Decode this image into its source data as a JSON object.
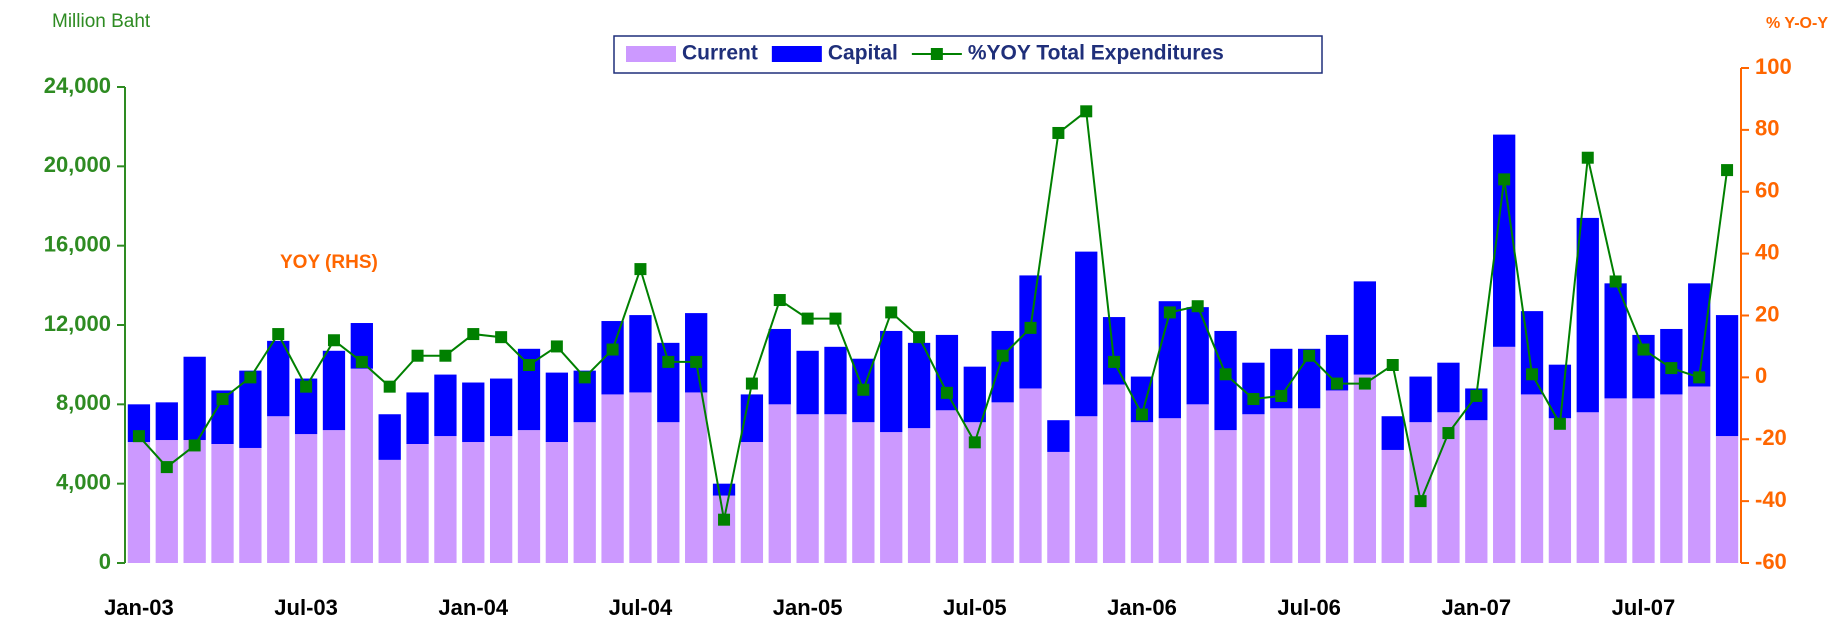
{
  "chart_data": {
    "type": "bar-line",
    "y_axis_label": "Million Baht",
    "y2_axis_label": "% Y-O-Y",
    "annotation": "YOY (RHS)",
    "categories": [
      "Jan-03",
      null,
      null,
      null,
      null,
      null,
      "Jul-03",
      null,
      null,
      null,
      null,
      null,
      "Jan-04",
      null,
      null,
      null,
      null,
      null,
      "Jul-04",
      null,
      null,
      null,
      null,
      null,
      "Jan-05",
      null,
      null,
      null,
      null,
      null,
      "Jul-05",
      null,
      null,
      null,
      null,
      null,
      "Jan-06",
      null,
      null,
      null,
      null,
      null,
      "Jul-06",
      null,
      null,
      null,
      null,
      null,
      "Jan-07",
      null,
      null,
      null,
      null,
      null,
      "Jul-07",
      null,
      null,
      null
    ],
    "series": [
      {
        "name": "Current",
        "color": "#cc99ff",
        "stack": true,
        "values": [
          6100,
          6200,
          6200,
          6000,
          5800,
          7400,
          6500,
          6700,
          9800,
          5200,
          6000,
          6400,
          6100,
          6400,
          6700,
          6100,
          7100,
          8500,
          8600,
          7100,
          8600,
          3400,
          6100,
          8000,
          7500,
          7500,
          7100,
          6600,
          6800,
          7700,
          7100,
          8100,
          8800,
          5600,
          7400,
          9000,
          7100,
          7300,
          8000,
          6700,
          7500,
          7800,
          7800,
          8700,
          9500,
          5700,
          7100,
          7600,
          7200,
          10900,
          8500,
          7300,
          7600,
          8300,
          8300,
          8500,
          8900,
          6400
        ]
      },
      {
        "name": "Capital",
        "color": "#0000ff",
        "stack": true,
        "values": [
          1900,
          1900,
          4200,
          2700,
          3900,
          3800,
          2800,
          4000,
          2300,
          2300,
          2600,
          3100,
          3000,
          2900,
          4100,
          3500,
          2600,
          3700,
          3900,
          4000,
          4000,
          600,
          2400,
          3800,
          3200,
          3400,
          3200,
          5100,
          4300,
          3800,
          2800,
          3600,
          5700,
          1600,
          8300,
          3400,
          2300,
          5900,
          4900,
          5000,
          2600,
          3000,
          3000,
          2800,
          4700,
          1700,
          2300,
          2500,
          1600,
          10700,
          4200,
          2700,
          9800,
          5800,
          3200,
          3300,
          5200,
          6100
        ]
      },
      {
        "name": "%YOY Total Expenditures",
        "color": "#008000",
        "axis": "y2",
        "values": [
          -19,
          -29,
          -22,
          -7,
          0,
          14,
          -3,
          12,
          5,
          -3,
          7,
          7,
          14,
          13,
          4,
          10,
          0,
          9,
          35,
          5,
          5,
          -46,
          -2,
          25,
          19,
          19,
          -4,
          21,
          13,
          -5,
          -21,
          7,
          16,
          79,
          86,
          5,
          -12,
          21,
          23,
          1,
          -7,
          -6,
          7,
          -2,
          -2,
          4,
          -40,
          -18,
          -6,
          64,
          1,
          -15,
          71,
          31,
          9,
          3,
          0,
          67
        ]
      }
    ],
    "ylim": [
      0,
      24000
    ],
    "yticks": [
      {
        "value": 0,
        "label": "0"
      },
      {
        "value": 4000,
        "label": "4,000"
      },
      {
        "value": 8000,
        "label": "8,000"
      },
      {
        "value": 12000,
        "label": "12,000"
      },
      {
        "value": 16000,
        "label": "16,000"
      },
      {
        "value": 20000,
        "label": "20,000"
      },
      {
        "value": 24000,
        "label": "24,000"
      }
    ],
    "y2lim": [
      -60,
      100
    ],
    "y2ticks": [
      -60,
      -40,
      -20,
      0,
      20,
      40,
      60,
      80,
      100
    ],
    "left_axis_color": "#2e8b22",
    "right_axis_color": "#ff6600",
    "legend": "top"
  }
}
